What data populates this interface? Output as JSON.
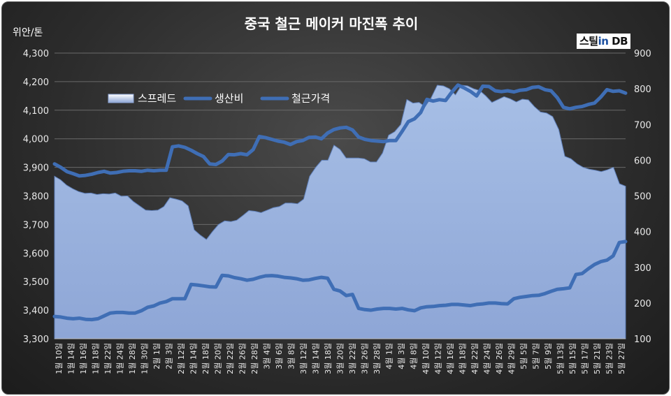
{
  "logo": {
    "part1": "스틸",
    "part2": "in",
    "part3": " DB"
  },
  "chart_data": {
    "type": "area+line",
    "title": "중국 철근 메이커 마진폭 추이",
    "ylabel_left": "위안/톤",
    "y_left_lim": [
      3300,
      4300
    ],
    "y_left_ticks": [
      "3,300",
      "3,400",
      "3,500",
      "3,600",
      "3,700",
      "3,800",
      "3,900",
      "4,000",
      "4,100",
      "4,200",
      "4,300"
    ],
    "y_right_lim": [
      100,
      900
    ],
    "y_right_ticks": [
      "100",
      "200",
      "300",
      "400",
      "500",
      "600",
      "700",
      "800",
      "900"
    ],
    "legend": [
      "스프레드",
      "생산비",
      "철근가격"
    ],
    "legend_position": "top-left",
    "x_labels": [
      "1월 10일",
      "1월 14일",
      "1월 16일",
      "1월 18일",
      "1월 22일",
      "1월 24일",
      "1월 28일",
      "1월 30일",
      "2월 1일",
      "2월 3일",
      "2월 12일",
      "2월 14일",
      "2월 18일",
      "2월 20일",
      "2월 22일",
      "2월 26일",
      "2월 28일",
      "3월 4일",
      "3월 6일",
      "3월 8일",
      "3월 12일",
      "3월 14일",
      "3월 18일",
      "3월 20일",
      "3월 22일",
      "3월 26일",
      "3월 28일",
      "4월 1일",
      "4월 3일",
      "4월 8일",
      "4월 10일",
      "4월 12일",
      "4월 16일",
      "4월 18일",
      "4월 22일",
      "4월 24일",
      "4월 26일",
      "4월 29일",
      "5월 5일",
      "5월 7일",
      "5월 9일",
      "5월 13일",
      "5월 15일",
      "5월 17일",
      "5월 21일",
      "5월 23일",
      "5월 27일"
    ],
    "series": [
      {
        "name": "스프레드",
        "axis": "right",
        "kind": "area",
        "values": [
          555,
          545,
          530,
          520,
          512,
          507,
          508,
          504,
          506,
          505,
          508,
          499,
          500,
          484,
          472,
          460,
          459,
          460,
          470,
          495,
          491,
          486,
          472,
          405,
          390,
          378,
          400,
          420,
          430,
          428,
          432,
          445,
          459,
          457,
          453,
          460,
          467,
          470,
          480,
          480,
          478,
          491,
          555,
          580,
          600,
          600,
          642,
          630,
          606,
          606,
          606,
          604,
          595,
          595,
          620,
          670,
          680,
          700,
          770,
          760,
          762,
          750,
          775,
          810,
          808,
          800,
          783,
          810,
          808,
          800,
          795,
          780,
          762,
          770,
          778,
          772,
          763,
          771,
          769,
          750,
          735,
          732,
          722,
          686,
          611,
          604,
          590,
          580,
          575,
          572,
          568,
          573,
          580,
          534,
          527
        ]
      },
      {
        "name": "생산비",
        "axis": "left",
        "kind": "line",
        "values": [
          3378,
          3376,
          3372,
          3370,
          3372,
          3368,
          3367,
          3370,
          3380,
          3390,
          3392,
          3392,
          3390,
          3390,
          3398,
          3410,
          3415,
          3425,
          3430,
          3440,
          3440,
          3440,
          3490,
          3488,
          3485,
          3482,
          3481,
          3522,
          3520,
          3514,
          3510,
          3505,
          3508,
          3515,
          3520,
          3521,
          3519,
          3515,
          3513,
          3510,
          3505,
          3506,
          3511,
          3515,
          3512,
          3473,
          3467,
          3451,
          3455,
          3406,
          3402,
          3400,
          3404,
          3406,
          3406,
          3404,
          3406,
          3401,
          3398,
          3408,
          3412,
          3413,
          3416,
          3417,
          3420,
          3420,
          3418,
          3416,
          3420,
          3422,
          3425,
          3425,
          3423,
          3422,
          3440,
          3445,
          3448,
          3451,
          3452,
          3458,
          3466,
          3473,
          3475,
          3478,
          3525,
          3528,
          3545,
          3560,
          3570,
          3575,
          3590,
          3637,
          3640
        ]
      },
      {
        "name": "철근가격",
        "axis": "left",
        "kind": "line",
        "values": [
          3912,
          3900,
          3885,
          3878,
          3870,
          3872,
          3876,
          3882,
          3886,
          3880,
          3882,
          3886,
          3888,
          3888,
          3886,
          3890,
          3888,
          3890,
          3890,
          3972,
          3975,
          3970,
          3960,
          3948,
          3938,
          3912,
          3910,
          3922,
          3945,
          3944,
          3948,
          3944,
          3962,
          4008,
          4004,
          3998,
          3992,
          3988,
          3980,
          3990,
          3994,
          4005,
          4006,
          4000,
          4020,
          4032,
          4038,
          4040,
          4031,
          4006,
          3998,
          3994,
          3992,
          3990,
          3994,
          3994,
          4026,
          4060,
          4070,
          4092,
          4138,
          4132,
          4137,
          4134,
          4163,
          4188,
          4178,
          4166,
          4150,
          4184,
          4183,
          4168,
          4165,
          4168,
          4164,
          4170,
          4172,
          4180,
          4182,
          4172,
          4168,
          4144,
          4110,
          4105,
          4110,
          4113,
          4120,
          4125,
          4146,
          4172,
          4166,
          4168,
          4160
        ]
      }
    ]
  }
}
